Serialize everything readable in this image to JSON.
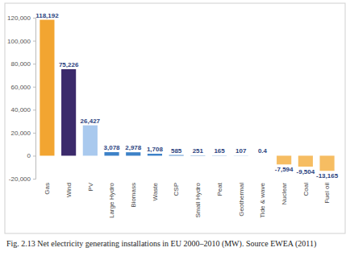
{
  "chart_data": {
    "type": "bar",
    "title": "Fig. 2.13  Net electricity generating installations in EU 2000–2010 (MW). Source EWEA (2011)",
    "categories": [
      "Gas",
      "Wind",
      "PV",
      "Large Hydro",
      "Biomass",
      "Waste",
      "CSP",
      "Small Hydro",
      "Peat",
      "Geothermal",
      "Tide & wave",
      "Nuclear",
      "Coal",
      "Fuel oil"
    ],
    "values": [
      118192,
      75226,
      26427,
      3078,
      2978,
      1708,
      585,
      251,
      165,
      107,
      0.4,
      -7594,
      -9504,
      -13165
    ],
    "value_labels": [
      "118,192",
      "75,226",
      "26,427",
      "3,078",
      "2,978",
      "1,708",
      "585",
      "251",
      "165",
      "107",
      "0.4",
      "-7,594",
      "-9,504",
      "-13,165"
    ],
    "colors": [
      "#f2a531",
      "#3b2a6b",
      "#a9c9ee",
      "#3d82c8",
      "#3d82c8",
      "#3d82c8",
      "#3d82c8",
      "#3d82c8",
      "#3d82c8",
      "#3d82c8",
      "#3d82c8",
      "#f6bd62",
      "#f6bd62",
      "#f6bd62"
    ],
    "data_labels": true,
    "ylim": [
      -20000,
      120000
    ],
    "yticks": [
      {
        "value": -20000,
        "label": "-20,000"
      },
      0,
      {
        "value": 20000,
        "label": "20,000"
      },
      {
        "value": 40000,
        "label": "40,000"
      },
      {
        "value": 60000,
        "label": "60,000"
      },
      {
        "value": 80000,
        "label": "80,000"
      },
      {
        "value": 100000,
        "label": "100,000"
      },
      {
        "value": 120000,
        "label": "120,000"
      }
    ]
  }
}
